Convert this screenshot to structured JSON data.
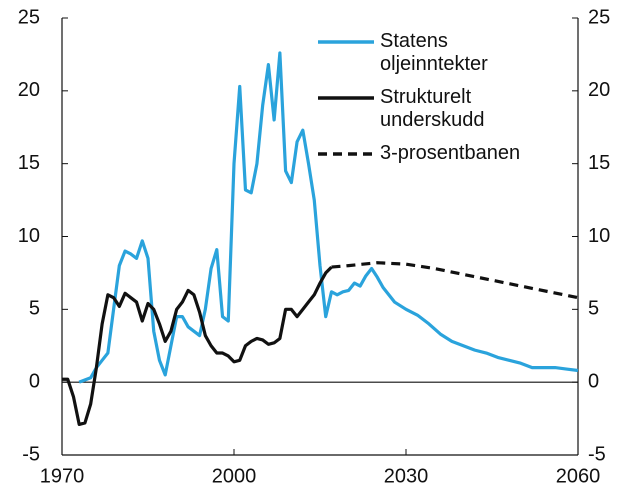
{
  "chart_data": {
    "type": "line",
    "xlim": [
      1970,
      2060
    ],
    "xticks": [
      1970,
      2000,
      2030,
      2060
    ],
    "ylim": [
      -5,
      25
    ],
    "yticks": [
      -5,
      0,
      5,
      10,
      15,
      20,
      25
    ],
    "y2lim": [
      -5,
      25
    ],
    "y2ticks": [
      -5,
      0,
      5,
      10,
      15,
      20,
      25
    ],
    "legend": "upper right",
    "series": [
      {
        "name": "Statens oljeinntekter",
        "color": "#2aa3dc",
        "style": "solid",
        "x": [
          1973,
          1975,
          1976,
          1977,
          1978,
          1979,
          1980,
          1981,
          1982,
          1983,
          1984,
          1985,
          1986,
          1987,
          1988,
          1989,
          1990,
          1991,
          1992,
          1993,
          1994,
          1995,
          1996,
          1997,
          1998,
          1999,
          2000,
          2001,
          2002,
          2003,
          2004,
          2005,
          2006,
          2007,
          2008,
          2009,
          2010,
          2011,
          2012,
          2013,
          2014,
          2015,
          2016,
          2017,
          2018,
          2019,
          2020,
          2021,
          2022,
          2023,
          2024,
          2025,
          2026,
          2027,
          2028,
          2030,
          2032,
          2034,
          2036,
          2038,
          2040,
          2042,
          2044,
          2046,
          2048,
          2050,
          2052,
          2054,
          2056,
          2058,
          2060
        ],
        "values": [
          0,
          0.3,
          1,
          1.5,
          2,
          5,
          8,
          9,
          8.8,
          8.5,
          9.7,
          8.5,
          3.5,
          1.5,
          0.5,
          2.5,
          4.5,
          4.5,
          3.8,
          3.5,
          3.2,
          5,
          7.8,
          9.1,
          4.5,
          4.2,
          15,
          20.3,
          13.2,
          13,
          15,
          19,
          21.8,
          18,
          22.6,
          14.5,
          13.7,
          16.5,
          17.3,
          15,
          12.5,
          8,
          4.5,
          6.2,
          6,
          6.2,
          6.3,
          6.8,
          6.6,
          7.3,
          7.8,
          7.2,
          6.5,
          6,
          5.5,
          5,
          4.6,
          4,
          3.3,
          2.8,
          2.5,
          2.2,
          2,
          1.7,
          1.5,
          1.3,
          1,
          1,
          1,
          0.9,
          0.8
        ]
      },
      {
        "name": "Strukturelt underskudd",
        "color": "#111111",
        "style": "solid",
        "x": [
          1970,
          1971,
          1972,
          1973,
          1974,
          1975,
          1976,
          1977,
          1978,
          1979,
          1980,
          1981,
          1982,
          1983,
          1984,
          1985,
          1986,
          1987,
          1988,
          1989,
          1990,
          1991,
          1992,
          1993,
          1994,
          1995,
          1996,
          1997,
          1998,
          1999,
          2000,
          2001,
          2002,
          2003,
          2004,
          2005,
          2006,
          2007,
          2008,
          2009,
          2010,
          2011,
          2012,
          2013,
          2014,
          2015,
          2016,
          2017
        ],
        "values": [
          0.2,
          0.2,
          -1,
          -2.9,
          -2.8,
          -1.5,
          1,
          4,
          6,
          5.8,
          5.2,
          6.1,
          5.8,
          5.5,
          4.2,
          5.4,
          5,
          4,
          2.8,
          3.5,
          5,
          5.5,
          6.3,
          6,
          4.8,
          3.2,
          2.5,
          2,
          2,
          1.8,
          1.4,
          1.5,
          2.5,
          2.8,
          3,
          2.9,
          2.6,
          2.7,
          3,
          5,
          5,
          4.5,
          5,
          5.5,
          6,
          6.8,
          7.5,
          7.9
        ]
      },
      {
        "name": "3-prosentbanen",
        "color": "#111111",
        "style": "dashed",
        "x": [
          2017,
          2020,
          2025,
          2030,
          2035,
          2040,
          2045,
          2050,
          2055,
          2060
        ],
        "values": [
          7.9,
          8.0,
          8.2,
          8.1,
          7.8,
          7.4,
          7,
          6.6,
          6.2,
          5.8
        ]
      }
    ]
  }
}
